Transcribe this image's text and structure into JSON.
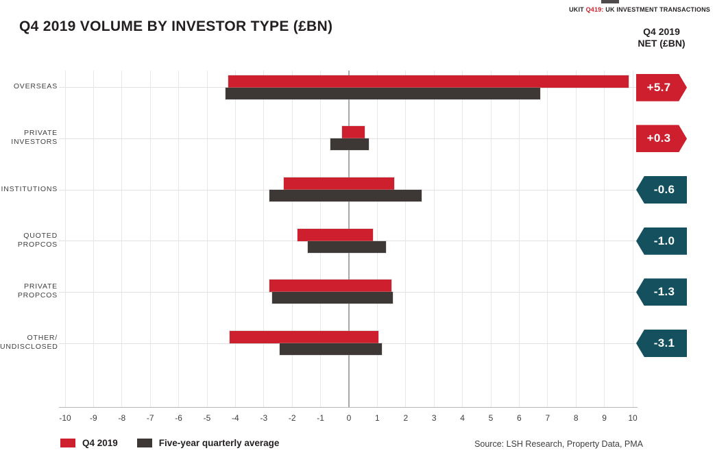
{
  "header": {
    "tag_prefix": "UKIT ",
    "tag_code": "Q419:",
    "tag_suffix": " UK INVESTMENT TRANSACTIONS",
    "title": "Q4 2019 VOLUME BY INVESTOR TYPE (£BN)"
  },
  "chart_data": {
    "type": "bar",
    "orientation": "horizontal-span",
    "title": "Q4 2019 VOLUME BY INVESTOR TYPE (£BN)",
    "xlim": [
      -10,
      10
    ],
    "x_ticks": [
      -10,
      -9,
      -8,
      -7,
      -6,
      -5,
      -4,
      -3,
      -2,
      -1,
      0,
      1,
      2,
      3,
      4,
      5,
      6,
      7,
      8,
      9,
      10
    ],
    "grid": true,
    "categories": [
      "OVERSEAS",
      "PRIVATE INVESTORS",
      "INSTITUTIONS",
      "QUOTED PROPCOS",
      "PRIVATE PROPCOS",
      "OTHER/UNDISCLOSED"
    ],
    "category_lines": [
      [
        "OVERSEAS"
      ],
      [
        "PRIVATE",
        "INVESTORS"
      ],
      [
        "INSTITUTIONS"
      ],
      [
        "QUOTED",
        "PROPCOS"
      ],
      [
        "PRIVATE",
        "PROPCOS"
      ],
      [
        "OTHER/",
        "UNDISCLOSED"
      ]
    ],
    "series": [
      {
        "name": "Q4 2019",
        "color": "#cd1f2d",
        "spans": [
          [
            -4.25,
            9.85
          ],
          [
            -0.25,
            0.55
          ],
          [
            -2.3,
            1.6
          ],
          [
            -1.8,
            0.85
          ],
          [
            -2.8,
            1.5
          ],
          [
            -4.2,
            1.05
          ]
        ]
      },
      {
        "name": "Five-year quarterly average",
        "color": "#3d3835",
        "spans": [
          [
            -4.35,
            6.75
          ],
          [
            -0.65,
            0.7
          ],
          [
            -2.8,
            2.55
          ],
          [
            -1.45,
            1.3
          ],
          [
            -2.7,
            1.55
          ],
          [
            -2.45,
            1.15
          ]
        ]
      }
    ],
    "net": {
      "header_line1": "Q4 2019",
      "header_line2": "NET (£BN)",
      "values": [
        5.7,
        0.3,
        -0.6,
        -1.0,
        -1.3,
        -3.1
      ],
      "labels": [
        "+5.7",
        "+0.3",
        "-0.6",
        "-1.0",
        "-1.3",
        "-3.1"
      ],
      "positive_color": "#cd1f2d",
      "negative_color": "#15505f"
    }
  },
  "legend": {
    "items": [
      {
        "label": "Q4 2019",
        "color": "#cd1f2d"
      },
      {
        "label": "Five-year quarterly average",
        "color": "#3d3835"
      }
    ]
  },
  "footer": {
    "source": "Source: LSH Research, Property Data, PMA"
  }
}
